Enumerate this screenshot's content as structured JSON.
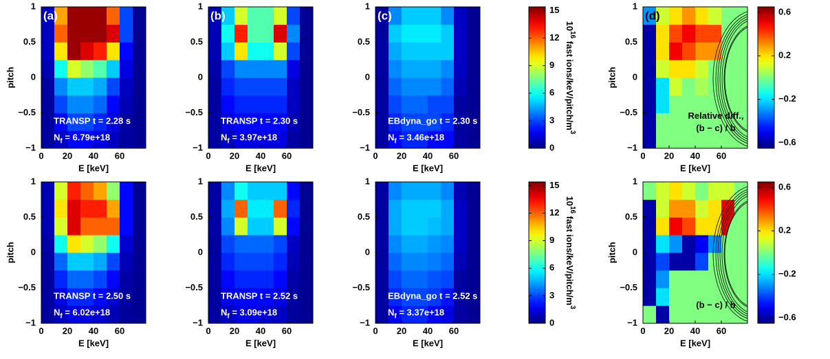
{
  "chart_data": [
    {
      "type": "heatmap",
      "panel_label": "(a)",
      "annotations": [
        "TRANSP  t = 2.28 s"
      ],
      "nf": {
        "base": "N",
        "sub": "f",
        "rest": " = 6.79e+18"
      },
      "xlabel": "E [keV]",
      "ylabel": "pitch",
      "xlim": [
        0,
        80
      ],
      "ylim": [
        -1,
        1
      ],
      "xticks": [
        0,
        20,
        40,
        60
      ],
      "yticks": [
        {
          "value": -1,
          "label": "−1"
        },
        {
          "value": -0.5,
          "label": "−0.5"
        },
        0,
        0.5,
        1
      ],
      "x_bins": [
        0,
        10,
        20,
        30,
        40,
        50,
        60,
        70,
        80
      ],
      "y_bins": [
        -1,
        -0.75,
        -0.5,
        -0.25,
        0,
        0.25,
        0.5,
        0.75,
        1
      ],
      "clim": [
        0,
        15.4
      ],
      "colormap": "jet",
      "z": [
        [
          0.5,
          1,
          2,
          2,
          1.5,
          1,
          0.5,
          0.3
        ],
        [
          0.5,
          2,
          3,
          3,
          2.5,
          1.5,
          0.5,
          0.3
        ],
        [
          0.5,
          3,
          4,
          4,
          3.5,
          2,
          0.8,
          0.3
        ],
        [
          0.5,
          4,
          5,
          5,
          4.5,
          3,
          1,
          0.3
        ],
        [
          0.8,
          6,
          9,
          8,
          7,
          5,
          1.5,
          0.3
        ],
        [
          1,
          10,
          15,
          14,
          13,
          10,
          2,
          0.3
        ],
        [
          1,
          12,
          15,
          15,
          15,
          14,
          3,
          0.3
        ],
        [
          1,
          11,
          15,
          15,
          15,
          12,
          3,
          0.3
        ]
      ]
    },
    {
      "type": "heatmap",
      "panel_label": "(b)",
      "annotations": [
        "TRANSP  t = 2.30 s"
      ],
      "nf": {
        "base": "N",
        "sub": "f",
        "rest": " = 3.97e+18"
      },
      "xlabel": "E [keV]",
      "xlim": [
        0,
        80
      ],
      "ylim": [
        -1,
        1
      ],
      "xticks": [
        0,
        20,
        40,
        60
      ],
      "yticks": [
        {
          "value": -1,
          "label": "−1"
        },
        {
          "value": -0.5,
          "label": "−0.5"
        },
        0,
        0.5,
        1
      ],
      "x_bins": [
        0,
        10,
        20,
        30,
        40,
        50,
        60,
        70,
        80
      ],
      "y_bins": [
        -1,
        -0.75,
        -0.5,
        -0.25,
        0,
        0.25,
        0.5,
        0.75,
        1
      ],
      "clim": [
        0,
        15.4
      ],
      "colormap": "jet",
      "z": [
        [
          0.5,
          1,
          1.5,
          1.5,
          1.5,
          1.5,
          0.5,
          0.3
        ],
        [
          0.5,
          1.5,
          2,
          2,
          2,
          2,
          0.8,
          0.3
        ],
        [
          0.5,
          2,
          2.5,
          2.5,
          2.5,
          2.5,
          1,
          0.3
        ],
        [
          0.5,
          2.5,
          3,
          3,
          3,
          3,
          1,
          0.3
        ],
        [
          0.6,
          3,
          4,
          4,
          4,
          4,
          1.5,
          0.3
        ],
        [
          0.8,
          5,
          10,
          6,
          6,
          9,
          3,
          0.3
        ],
        [
          0.8,
          6,
          13,
          7,
          7,
          14,
          4,
          0.3
        ],
        [
          0.8,
          5,
          9,
          7,
          7,
          9,
          3,
          0.3
        ]
      ]
    },
    {
      "type": "heatmap",
      "panel_label": "(c)",
      "annotations": [
        "EBdyna_go  t = 2.30 s"
      ],
      "nf": {
        "base": "N",
        "sub": "f",
        "rest": " = 3.46e+18"
      },
      "xlabel": "E [keV]",
      "xlim": [
        0,
        80
      ],
      "ylim": [
        -1,
        1
      ],
      "xticks": [
        0,
        20,
        40,
        60
      ],
      "yticks": [
        {
          "value": -1,
          "label": "−1"
        },
        {
          "value": -0.5,
          "label": "−0.5"
        },
        0,
        0.5,
        1
      ],
      "x_bins": [
        0,
        10,
        20,
        30,
        40,
        50,
        60,
        70,
        80
      ],
      "y_bins": [
        -1,
        -0.75,
        -0.5,
        -0.25,
        0,
        0.25,
        0.5,
        0.75,
        1
      ],
      "clim": [
        0,
        15.4
      ],
      "colormap": "jet",
      "z": [
        [
          0.5,
          2,
          2.5,
          2.5,
          2,
          2,
          0.5,
          0.3
        ],
        [
          0.5,
          2.5,
          3,
          3,
          3,
          2.5,
          0.5,
          0.3
        ],
        [
          0.5,
          3,
          3.5,
          3.5,
          3,
          3,
          0.5,
          0.3
        ],
        [
          0.5,
          3.5,
          4,
          4,
          4,
          3.5,
          0.8,
          0.3
        ],
        [
          0.5,
          4,
          4.5,
          4.5,
          4.5,
          4,
          1,
          0.3
        ],
        [
          0.5,
          4.5,
          5,
          5,
          5,
          5,
          1,
          0.3
        ],
        [
          0.5,
          5,
          5.5,
          5.5,
          5.5,
          5,
          1,
          0.3
        ],
        [
          0.5,
          4,
          5,
          5,
          5,
          4,
          1,
          0.3
        ]
      ],
      "colorbar": {
        "ticks": [
          0,
          3,
          6,
          9,
          12,
          15
        ],
        "label": {
          "base": "10",
          "exp": "16",
          "text": " fast ions/keV/pitch/m",
          "unit_exp": "3"
        }
      }
    },
    {
      "type": "heatmap",
      "panel_label": "(d)",
      "annotations": [
        "Relative diff.,",
        "(b − c) / b"
      ],
      "xlabel": "E [keV]",
      "ylabel": "pitch",
      "xlim": [
        0,
        80
      ],
      "ylim": [
        -1,
        1
      ],
      "xticks": [
        0,
        20,
        40,
        60
      ],
      "yticks": [
        {
          "value": -1,
          "label": "−1"
        },
        {
          "value": -0.5,
          "label": "−0.5"
        },
        0,
        0.5,
        1
      ],
      "x_bins": [
        0,
        10,
        20,
        30,
        40,
        50,
        60,
        70,
        80
      ],
      "y_bins": [
        -1,
        -0.75,
        -0.5,
        -0.25,
        0,
        0.25,
        0.5,
        0.75,
        1
      ],
      "clim": [
        -0.65,
        0.65
      ],
      "colormap": "jet",
      "z": [
        [
          -0.6,
          0,
          0,
          0,
          0,
          0,
          0,
          0
        ],
        [
          -0.6,
          0,
          0,
          0,
          0,
          0,
          0,
          0
        ],
        [
          -0.6,
          -0.2,
          0,
          0,
          0,
          0,
          0,
          0
        ],
        [
          -0.6,
          -0.2,
          0.1,
          0,
          0.05,
          0,
          0,
          0
        ],
        [
          -0.6,
          0.1,
          0.2,
          0.2,
          0.1,
          0,
          0,
          0
        ],
        [
          -0.6,
          0.2,
          0.5,
          0.4,
          0.3,
          0.3,
          0,
          0
        ],
        [
          -0.6,
          0.2,
          0.4,
          0.5,
          0.4,
          0.4,
          0,
          0
        ],
        [
          -0.3,
          0.1,
          0.2,
          0.3,
          0.2,
          0.1,
          0,
          0
        ]
      ],
      "colorbar": {
        "ticks": [
          {
            "value": -0.6,
            "label": "−0.6"
          },
          {
            "value": -0.2,
            "label": "−0.2"
          },
          0.2,
          0.6
        ]
      }
    },
    {
      "type": "heatmap",
      "annotations": [
        "TRANSP  t = 2.50 s"
      ],
      "nf": {
        "base": "N",
        "sub": "f",
        "rest": " = 6.02e+18"
      },
      "xlabel": "E [keV]",
      "ylabel": "pitch",
      "xlim": [
        0,
        80
      ],
      "ylim": [
        -1,
        1
      ],
      "xticks": [
        0,
        20,
        40,
        60
      ],
      "yticks": [
        {
          "value": -1,
          "label": "−1"
        },
        {
          "value": -0.5,
          "label": "−0.5"
        },
        0,
        0.5,
        1
      ],
      "x_bins": [
        0,
        10,
        20,
        30,
        40,
        50,
        60,
        70,
        80
      ],
      "y_bins": [
        -1,
        -0.75,
        -0.5,
        -0.25,
        0,
        0.25,
        0.5,
        0.75,
        1
      ],
      "clim": [
        0,
        15.4
      ],
      "colormap": "jet",
      "z": [
        [
          0.5,
          1,
          1.5,
          1.5,
          1.2,
          0.8,
          0.4,
          0.3
        ],
        [
          0.5,
          1.5,
          2.5,
          2.5,
          2,
          1.2,
          0.5,
          0.3
        ],
        [
          0.5,
          2.5,
          3.5,
          3.5,
          3,
          2,
          0.6,
          0.3
        ],
        [
          0.5,
          3.5,
          5,
          5,
          4.5,
          3,
          0.8,
          0.3
        ],
        [
          0.6,
          6,
          10,
          9,
          8,
          6,
          1.2,
          0.3
        ],
        [
          0.8,
          9,
          14,
          12,
          12,
          12,
          2,
          0.3
        ],
        [
          0.8,
          10,
          14,
          13,
          13,
          11,
          2,
          0.3
        ],
        [
          0.8,
          9,
          13,
          12,
          11,
          8,
          2,
          0.3
        ]
      ]
    },
    {
      "type": "heatmap",
      "annotations": [
        "TRANSP  t = 2.52 s"
      ],
      "nf": {
        "base": "N",
        "sub": "f",
        "rest": " = 3.09e+18"
      },
      "xlabel": "E [keV]",
      "xlim": [
        0,
        80
      ],
      "ylim": [
        -1,
        1
      ],
      "xticks": [
        0,
        20,
        40,
        60
      ],
      "yticks": [
        {
          "value": -1,
          "label": "−1"
        },
        {
          "value": -0.5,
          "label": "−0.5"
        },
        0,
        0.5,
        1
      ],
      "x_bins": [
        0,
        10,
        20,
        30,
        40,
        50,
        60,
        70,
        80
      ],
      "y_bins": [
        -1,
        -0.75,
        -0.5,
        -0.25,
        0,
        0.25,
        0.5,
        0.75,
        1
      ],
      "clim": [
        0,
        15.4
      ],
      "colormap": "jet",
      "z": [
        [
          0.5,
          1,
          1.5,
          1.5,
          1.2,
          1,
          0.4,
          0.3
        ],
        [
          0.5,
          1.5,
          2,
          2,
          2,
          1.5,
          0.5,
          0.3
        ],
        [
          0.5,
          2,
          2.5,
          2.5,
          2.5,
          2,
          0.6,
          0.3
        ],
        [
          0.5,
          2.5,
          3,
          3,
          3,
          2.5,
          0.8,
          0.3
        ],
        [
          0.5,
          3,
          3.5,
          3.5,
          3.5,
          3,
          1,
          0.3
        ],
        [
          0.6,
          4,
          9,
          5,
          5,
          9,
          2,
          0.3
        ],
        [
          0.6,
          4.5,
          12,
          5.5,
          5.5,
          12,
          2.5,
          0.3
        ],
        [
          0.6,
          4,
          6,
          5,
          5,
          5,
          2,
          0.3
        ]
      ]
    },
    {
      "type": "heatmap",
      "annotations": [
        "EBdyna_go  t = 2.52 s"
      ],
      "nf": {
        "base": "N",
        "sub": "f",
        "rest": " = 3.37e+18"
      },
      "xlabel": "E [keV]",
      "xlim": [
        0,
        80
      ],
      "ylim": [
        -1,
        1
      ],
      "xticks": [
        0,
        20,
        40,
        60
      ],
      "yticks": [
        {
          "value": -1,
          "label": "−1"
        },
        {
          "value": -0.5,
          "label": "−0.5"
        },
        0,
        0.5,
        1
      ],
      "x_bins": [
        0,
        10,
        20,
        30,
        40,
        50,
        60,
        70,
        80
      ],
      "y_bins": [
        -1,
        -0.75,
        -0.5,
        -0.25,
        0,
        0.25,
        0.5,
        0.75,
        1
      ],
      "clim": [
        0,
        15.4
      ],
      "colormap": "jet",
      "z": [
        [
          0.5,
          1.8,
          2.5,
          2.5,
          2,
          1.5,
          0.5,
          0.3
        ],
        [
          0.5,
          2.5,
          3,
          3,
          2.8,
          2.2,
          0.5,
          0.3
        ],
        [
          0.5,
          3,
          3.5,
          3.5,
          3.2,
          3,
          0.5,
          0.3
        ],
        [
          0.5,
          3.5,
          4,
          4,
          3.8,
          3.5,
          0.8,
          0.3
        ],
        [
          0.5,
          4,
          4.5,
          4.5,
          4.2,
          4,
          1,
          0.3
        ],
        [
          0.5,
          4.5,
          5,
          5,
          4.8,
          4.5,
          1,
          0.3
        ],
        [
          0.5,
          4.5,
          5,
          5,
          5,
          4.5,
          1,
          0.3
        ],
        [
          0.5,
          4,
          4.5,
          4.5,
          4.5,
          4,
          0.8,
          0.3
        ]
      ],
      "colorbar": {
        "ticks": [
          0,
          3,
          6,
          9,
          12,
          15
        ],
        "label": {
          "base": "10",
          "exp": "16",
          "text": " fast ions/keV/pitch/m",
          "unit_exp": "3"
        }
      }
    },
    {
      "type": "heatmap",
      "annotations": [
        "(b − c) / b"
      ],
      "xlabel": "E [keV]",
      "ylabel": "pitch",
      "xlim": [
        0,
        80
      ],
      "ylim": [
        -1,
        1
      ],
      "xticks": [
        0,
        20,
        40,
        60
      ],
      "yticks": [
        {
          "value": -1,
          "label": "−1"
        },
        {
          "value": -0.5,
          "label": "−0.5"
        },
        0,
        0.5,
        1
      ],
      "x_bins": [
        0,
        10,
        20,
        30,
        40,
        50,
        60,
        70,
        80
      ],
      "y_bins": [
        -1,
        -0.75,
        -0.5,
        -0.25,
        0,
        0.25,
        0.5,
        0.75,
        1
      ],
      "clim": [
        -0.65,
        0.65
      ],
      "colormap": "jet",
      "z": [
        [
          0,
          -0.6,
          0,
          0,
          0,
          0,
          0,
          0
        ],
        [
          -0.6,
          -0.2,
          0,
          0,
          0,
          0,
          0,
          0
        ],
        [
          -0.6,
          -0.3,
          0,
          0,
          0,
          0,
          0,
          0
        ],
        [
          -0.6,
          -0.4,
          -0.6,
          -0.6,
          -0.4,
          0,
          0,
          0
        ],
        [
          -0.6,
          -0.2,
          -0.3,
          -0.6,
          -0.5,
          -0.3,
          0,
          0
        ],
        [
          -0.6,
          0.2,
          0.5,
          0.4,
          0.2,
          0.2,
          0.5,
          0
        ],
        [
          -0.6,
          0.1,
          0.3,
          0.3,
          0.1,
          0.2,
          0.5,
          0
        ],
        [
          0,
          0.1,
          0.2,
          0.1,
          0,
          0.1,
          0.1,
          0
        ]
      ],
      "colorbar": {
        "ticks": [
          {
            "value": -0.6,
            "label": "−0.6"
          },
          {
            "value": -0.2,
            "label": "−0.2"
          },
          0.2,
          0.6
        ]
      }
    }
  ]
}
